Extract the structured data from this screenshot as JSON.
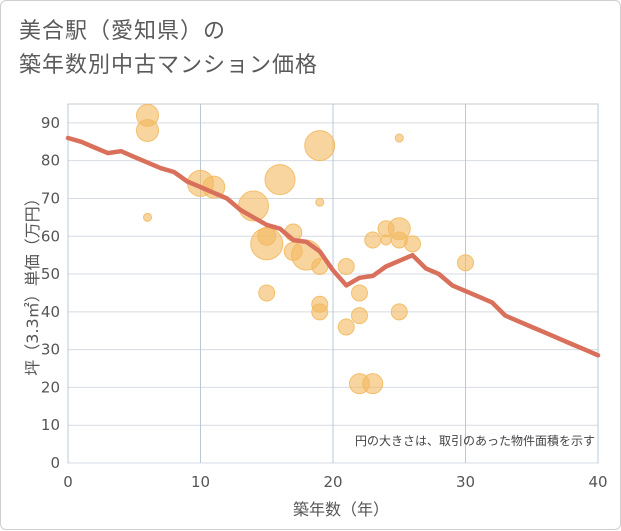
{
  "title": {
    "line1": "美合駅（愛知県）の",
    "line2": "築年数別中古マンション価格"
  },
  "chart_data": {
    "type": "scatter",
    "xlabel": "築年数（年）",
    "ylabel": "坪（3.3㎡）単価（万円）",
    "xlim": [
      0,
      40
    ],
    "ylim": [
      0,
      95
    ],
    "x_ticks": [
      0,
      10,
      20,
      30,
      40
    ],
    "y_ticks": [
      0,
      10,
      20,
      30,
      40,
      50,
      60,
      70,
      80,
      90
    ],
    "grid": true,
    "bubble_color": "#f3b95f",
    "trend_color": "#d9705b",
    "note": "円の大きさは、取引のあった物件面積を示す",
    "points": [
      {
        "x": 6,
        "y": 92,
        "size": 2.2
      },
      {
        "x": 6,
        "y": 88,
        "size": 2.2
      },
      {
        "x": 6,
        "y": 65,
        "size": 0.8
      },
      {
        "x": 10,
        "y": 74,
        "size": 2.6
      },
      {
        "x": 11,
        "y": 73,
        "size": 2.2
      },
      {
        "x": 14,
        "y": 68,
        "size": 3.0
      },
      {
        "x": 15,
        "y": 60,
        "size": 1.8
      },
      {
        "x": 15,
        "y": 58,
        "size": 3.2
      },
      {
        "x": 15,
        "y": 45,
        "size": 1.6
      },
      {
        "x": 16,
        "y": 75,
        "size": 3.0
      },
      {
        "x": 17,
        "y": 61,
        "size": 1.7
      },
      {
        "x": 17,
        "y": 56,
        "size": 1.8
      },
      {
        "x": 18,
        "y": 55,
        "size": 3.0
      },
      {
        "x": 19,
        "y": 84,
        "size": 3.0
      },
      {
        "x": 19,
        "y": 69,
        "size": 0.8
      },
      {
        "x": 19,
        "y": 52,
        "size": 1.6
      },
      {
        "x": 19,
        "y": 42,
        "size": 1.6
      },
      {
        "x": 19,
        "y": 40,
        "size": 1.6
      },
      {
        "x": 21,
        "y": 52,
        "size": 1.6
      },
      {
        "x": 21,
        "y": 36,
        "size": 1.6
      },
      {
        "x": 22,
        "y": 45,
        "size": 1.6
      },
      {
        "x": 22,
        "y": 39,
        "size": 1.6
      },
      {
        "x": 22,
        "y": 21,
        "size": 2.0
      },
      {
        "x": 23,
        "y": 59,
        "size": 1.6
      },
      {
        "x": 23,
        "y": 21,
        "size": 2.0
      },
      {
        "x": 24,
        "y": 62,
        "size": 1.6
      },
      {
        "x": 24,
        "y": 59,
        "size": 1.0
      },
      {
        "x": 25,
        "y": 86,
        "size": 0.8
      },
      {
        "x": 25,
        "y": 62,
        "size": 2.2
      },
      {
        "x": 25,
        "y": 59,
        "size": 1.6
      },
      {
        "x": 25,
        "y": 40,
        "size": 1.6
      },
      {
        "x": 26,
        "y": 58,
        "size": 1.6
      },
      {
        "x": 30,
        "y": 53,
        "size": 1.6
      }
    ],
    "trend": {
      "x": [
        0,
        1,
        2,
        3,
        4,
        5,
        6,
        7,
        8,
        9,
        10,
        11,
        12,
        13,
        14,
        15,
        16,
        17,
        18,
        19,
        20,
        21,
        22,
        23,
        24,
        25,
        26,
        27,
        28,
        29,
        30,
        31,
        32,
        33,
        34,
        35,
        36,
        37,
        38,
        39,
        40
      ],
      "y": [
        86,
        85,
        83.5,
        82,
        82.5,
        81,
        79.5,
        78,
        77,
        74.5,
        73,
        71.5,
        70,
        67,
        65,
        63,
        62,
        59,
        58.5,
        56,
        51,
        47,
        49,
        49.5,
        52,
        53.5,
        55,
        51.5,
        50,
        47,
        45.5,
        44,
        42.5,
        39,
        37.5,
        36,
        34.5,
        33,
        31.5,
        30,
        28.5
      ]
    }
  }
}
